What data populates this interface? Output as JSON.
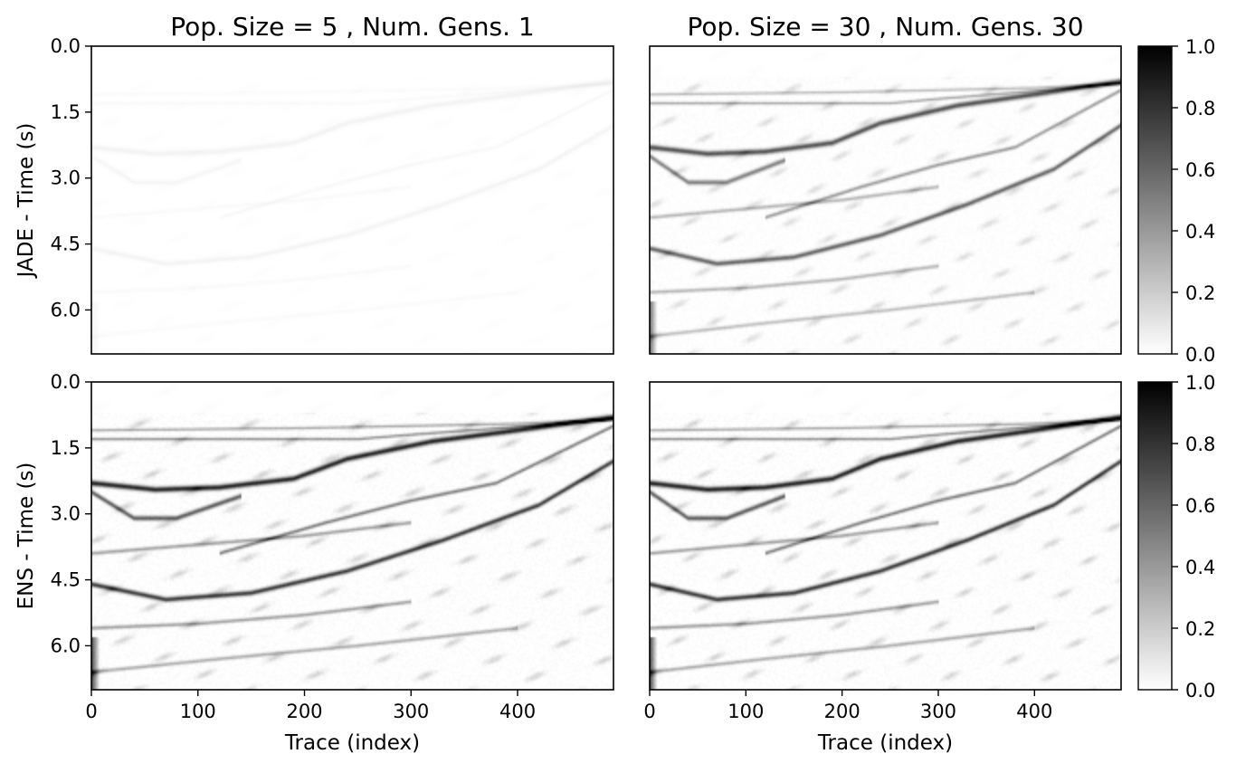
{
  "chart_data": {
    "type": "heatmap",
    "description_colormap": "gray_r",
    "colormap_stops": [
      "#ffffff",
      "#000000"
    ],
    "panels": [
      {
        "id": "jade-pop5",
        "row": 0,
        "col": 0,
        "title": "Pop. Size = 5 , Num. Gens. 1",
        "ylabel": "JADE - Time (s)",
        "xlabel": "",
        "show_yticks": true,
        "show_xticks": false,
        "intensity_scale": 0.05,
        "colorbar": false
      },
      {
        "id": "jade-pop30",
        "row": 0,
        "col": 1,
        "title": "Pop. Size = 30 , Num. Gens. 30",
        "ylabel": "",
        "xlabel": "",
        "show_yticks": false,
        "show_xticks": false,
        "intensity_scale": 0.72,
        "colorbar": true
      },
      {
        "id": "ens-left",
        "row": 1,
        "col": 0,
        "title": "",
        "ylabel": "ENS - Time (s)",
        "xlabel": "Trace (index)",
        "show_yticks": true,
        "show_xticks": true,
        "intensity_scale": 0.92,
        "colorbar": false
      },
      {
        "id": "ens-right",
        "row": 1,
        "col": 1,
        "title": "",
        "ylabel": "",
        "xlabel": "Trace (index)",
        "show_yticks": false,
        "show_xticks": true,
        "intensity_scale": 0.92,
        "colorbar": true
      }
    ],
    "x_range": [
      0,
      490
    ],
    "x_ticks": [
      0,
      100,
      200,
      300,
      400
    ],
    "x_tick_labels": [
      "0",
      "100",
      "200",
      "300",
      "400"
    ],
    "y_range": [
      0.0,
      7.0
    ],
    "y_inverted": true,
    "y_ticks": [
      0.0,
      1.5,
      3.0,
      4.5,
      6.0
    ],
    "y_tick_labels": [
      "0.0",
      "1.5",
      "3.0",
      "4.5",
      "6.0"
    ],
    "colorbar_range": [
      0.0,
      1.0
    ],
    "colorbar_ticks": [
      0.0,
      0.2,
      0.4,
      0.6,
      0.8,
      1.0
    ],
    "colorbar_tick_labels": [
      "0.0",
      "0.2",
      "0.4",
      "0.6",
      "0.8",
      "1.0"
    ],
    "reflectors": [
      {
        "name": "water-bottom",
        "strength": 0.95,
        "width": 0.09,
        "points": [
          [
            0,
            2.3
          ],
          [
            60,
            2.45
          ],
          [
            120,
            2.4
          ],
          [
            190,
            2.2
          ],
          [
            240,
            1.75
          ],
          [
            320,
            1.35
          ],
          [
            400,
            1.1
          ],
          [
            490,
            0.8
          ]
        ]
      },
      {
        "name": "shallow-layer-a",
        "strength": 0.45,
        "width": 0.05,
        "points": [
          [
            0,
            1.3
          ],
          [
            250,
            1.3
          ],
          [
            300,
            1.2
          ],
          [
            440,
            0.95
          ],
          [
            490,
            0.85
          ]
        ]
      },
      {
        "name": "shallow-layer-b",
        "strength": 0.35,
        "width": 0.05,
        "points": [
          [
            0,
            1.1
          ],
          [
            200,
            1.05
          ],
          [
            300,
            1.0
          ],
          [
            400,
            0.95
          ],
          [
            490,
            0.85
          ]
        ]
      },
      {
        "name": "bowl-upper",
        "strength": 0.7,
        "width": 0.08,
        "points": [
          [
            0,
            2.5
          ],
          [
            40,
            3.1
          ],
          [
            80,
            3.1
          ],
          [
            140,
            2.6
          ]
        ]
      },
      {
        "name": "dipping-event",
        "strength": 0.55,
        "width": 0.06,
        "points": [
          [
            120,
            3.9
          ],
          [
            220,
            3.2
          ],
          [
            300,
            2.7
          ],
          [
            380,
            2.3
          ],
          [
            490,
            1.0
          ]
        ]
      },
      {
        "name": "mid-layer",
        "strength": 0.4,
        "width": 0.06,
        "points": [
          [
            0,
            3.9
          ],
          [
            100,
            3.7
          ],
          [
            200,
            3.5
          ],
          [
            300,
            3.2
          ]
        ]
      },
      {
        "name": "deep-reflector",
        "strength": 0.85,
        "width": 0.08,
        "points": [
          [
            0,
            4.6
          ],
          [
            70,
            4.95
          ],
          [
            150,
            4.8
          ],
          [
            240,
            4.3
          ],
          [
            330,
            3.6
          ],
          [
            420,
            2.8
          ],
          [
            490,
            1.8
          ]
        ]
      },
      {
        "name": "deep-layer-b",
        "strength": 0.4,
        "width": 0.06,
        "points": [
          [
            0,
            5.6
          ],
          [
            100,
            5.5
          ],
          [
            200,
            5.3
          ],
          [
            300,
            5.0
          ]
        ]
      },
      {
        "name": "deep-layer-c",
        "strength": 0.35,
        "width": 0.06,
        "points": [
          [
            0,
            6.6
          ],
          [
            120,
            6.3
          ],
          [
            250,
            6.0
          ],
          [
            400,
            5.6
          ]
        ]
      }
    ]
  }
}
